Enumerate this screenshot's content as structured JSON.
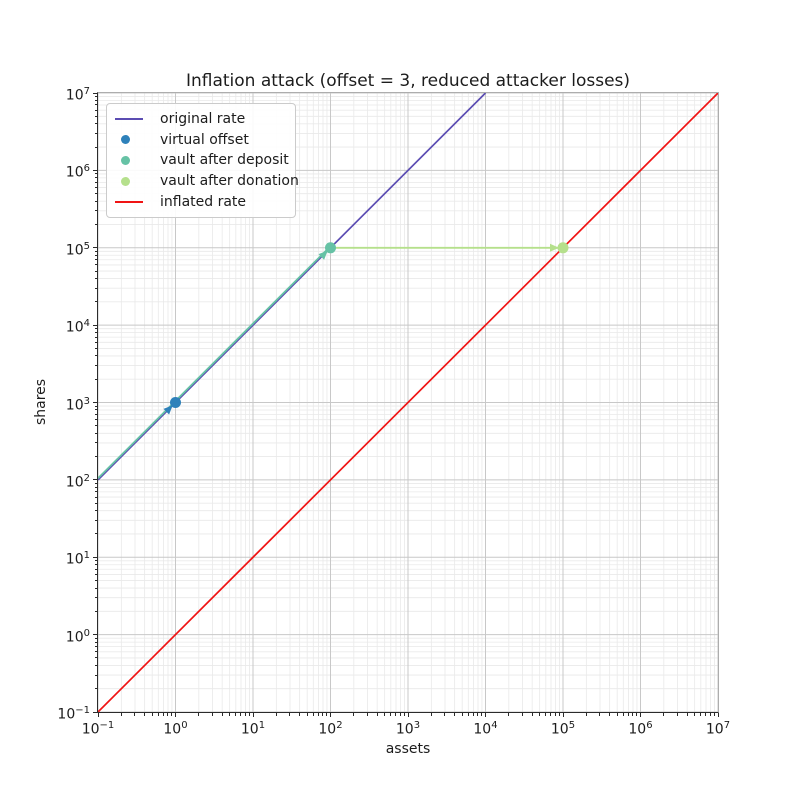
{
  "chart_data": {
    "type": "line",
    "title": "Inflation attack (offset = 3, reduced attacker losses)",
    "xlabel": "assets",
    "ylabel": "shares",
    "xscale": "log",
    "yscale": "log",
    "xlim": [
      0.1,
      10000000
    ],
    "ylim": [
      0.1,
      10000000
    ],
    "x_tick_exponents": [
      -1,
      0,
      1,
      2,
      3,
      4,
      5,
      6,
      7
    ],
    "y_tick_exponents": [
      -1,
      0,
      1,
      2,
      3,
      4,
      5,
      6,
      7
    ],
    "grid": "both",
    "legend_position": "upper left",
    "series": [
      {
        "name": "original rate",
        "kind": "line",
        "color": "#5b4cb2",
        "width": 1.7,
        "points": [
          [
            0.1,
            100
          ],
          [
            10000,
            10000000
          ]
        ],
        "relation": "shares = 1000 x assets"
      },
      {
        "name": "vault after deposit",
        "kind": "line",
        "color": "#66c2a5",
        "width": 1.8,
        "offset_y": -1.6,
        "points": [
          [
            0.1,
            100
          ],
          [
            100,
            100000
          ]
        ],
        "marker": [
          100,
          100000
        ],
        "marker_radius": 5.5,
        "arrow": {
          "from": [
            10,
            10000
          ],
          "to": [
            100,
            100000
          ]
        }
      },
      {
        "name": "vault after donation",
        "kind": "line",
        "color": "#b5e08c",
        "width": 1.8,
        "points": [
          [
            100,
            100000
          ],
          [
            100000,
            100000
          ]
        ],
        "marker": [
          100000,
          100000
        ],
        "marker_radius": 5.5,
        "arrow": {
          "from": [
            100,
            100000
          ],
          "to": [
            100000,
            100000
          ]
        }
      },
      {
        "name": "virtual offset",
        "kind": "marker",
        "color": "#2e81ba",
        "marker": [
          1,
          1000
        ],
        "marker_radius": 5.5,
        "arrow": {
          "from": [
            0.1,
            100
          ],
          "to": [
            1,
            1000
          ]
        }
      },
      {
        "name": "inflated rate",
        "kind": "line",
        "color": "#f01414",
        "width": 1.7,
        "points": [
          [
            0.1,
            0.1
          ],
          [
            10000000,
            10000000
          ]
        ],
        "relation": "shares = assets"
      }
    ]
  },
  "legend": {
    "items": [
      {
        "label": "original rate",
        "swatch": "line",
        "color": "#5b4cb2"
      },
      {
        "label": "virtual offset",
        "swatch": "dot",
        "color": "#2e81ba"
      },
      {
        "label": "vault after deposit",
        "swatch": "dot",
        "color": "#66c2a5"
      },
      {
        "label": "vault after donation",
        "swatch": "dot",
        "color": "#b5e08c"
      },
      {
        "label": "inflated rate",
        "swatch": "line",
        "color": "#f01414"
      }
    ]
  },
  "style_colors": {
    "grid_major": "#c8c8c8",
    "grid_minor": "#e9e9e9",
    "spine_dark": "#2b2b2b",
    "spine_light": "#adadad",
    "text": "#1c1c1c"
  }
}
